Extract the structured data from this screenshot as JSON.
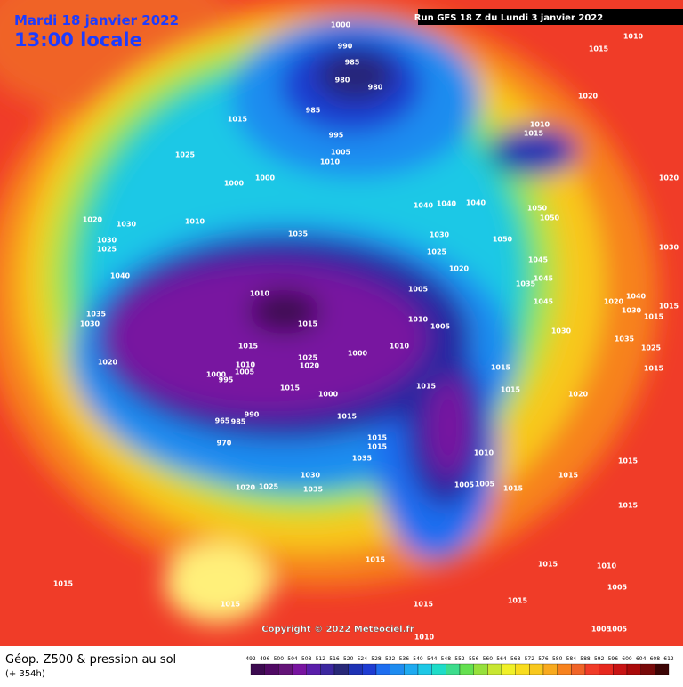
{
  "header": {
    "date": "Mardi 18 janvier 2022",
    "time": "13:00 locale",
    "run": "Run GFS 18 Z du Lundi 3 janvier 2022"
  },
  "copyright": "Copyright © 2022 Meteociel.fr",
  "legend": {
    "title": "Géop. Z500 & pression au sol",
    "lead": "(+ 354h)",
    "scale": [
      492,
      496,
      500,
      504,
      508,
      512,
      516,
      520,
      524,
      528,
      532,
      536,
      540,
      544,
      548,
      552,
      556,
      560,
      564,
      568,
      572,
      576,
      580,
      584,
      588,
      592,
      596,
      600,
      604,
      608,
      612
    ]
  },
  "isobars": [
    1000,
    990,
    985,
    980,
    980,
    985,
    995,
    1005,
    1010,
    1015,
    1025,
    1000,
    1000,
    1010,
    1020,
    1030,
    1030,
    1025,
    1040,
    1035,
    1030,
    1020,
    1035,
    1040,
    1040,
    1040,
    1030,
    1025,
    1020,
    1050,
    1050,
    1050,
    1010,
    1015,
    1005,
    1010,
    1005,
    1010,
    1000,
    1015,
    1010,
    1005,
    1000,
    995,
    1025,
    1020,
    1015,
    1000,
    990,
    965,
    985,
    970,
    1015,
    1015,
    1015,
    1015,
    1015,
    1015,
    1035,
    1010,
    1030,
    1035,
    1020,
    1025,
    1005,
    1005,
    1015,
    1015,
    1015,
    1015,
    1015,
    1015,
    1010,
    1005,
    1015,
    1015,
    1015,
    1015,
    1010,
    1005,
    1005,
    1010,
    1015,
    1020,
    1010,
    1015,
    1020,
    1030,
    1045,
    1045,
    1035,
    1045,
    1020,
    1040,
    1030,
    1015,
    1015,
    1030,
    1035,
    1025,
    1015,
    1020
  ]
}
